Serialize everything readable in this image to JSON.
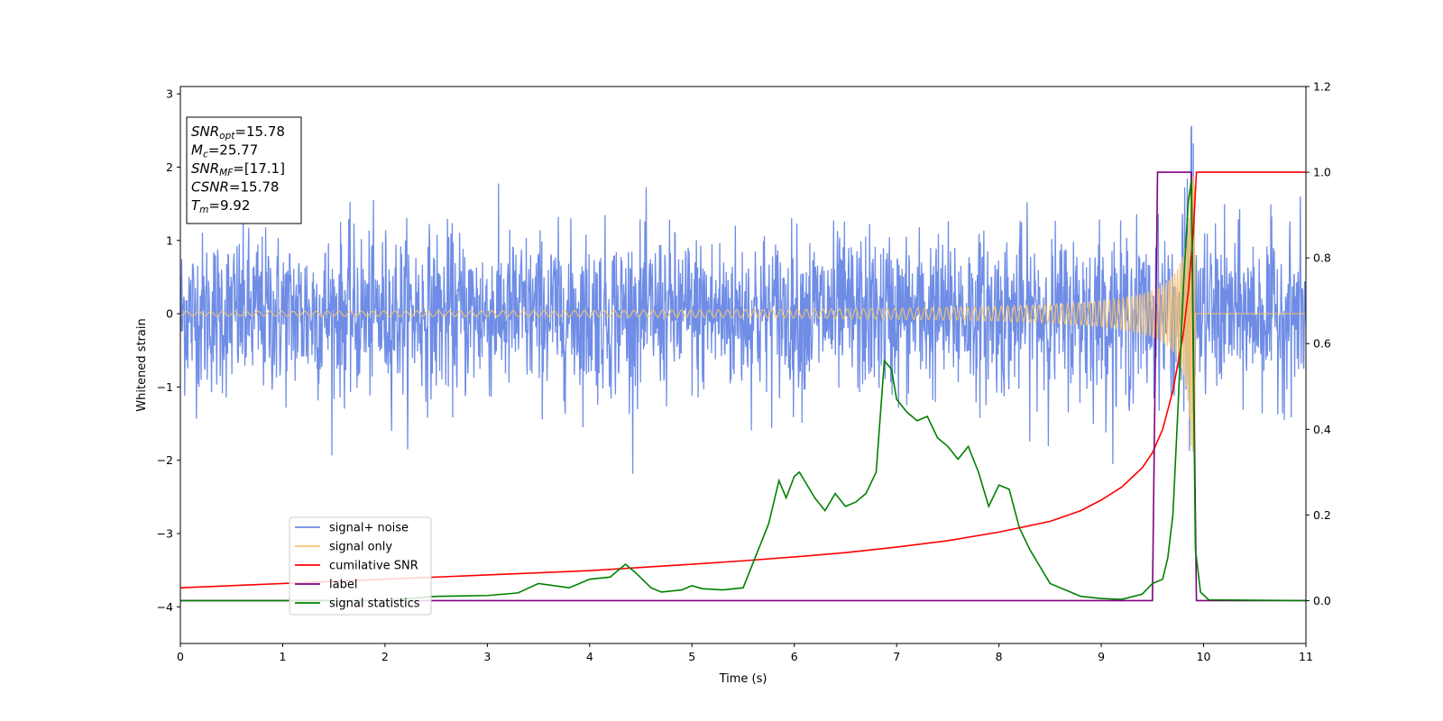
{
  "chart_data": {
    "type": "line",
    "xlabel": "Time (s)",
    "ylabel": "Whitened strain",
    "xlim": [
      0,
      11
    ],
    "ylim_left": [
      -4.5,
      3.1
    ],
    "ylim_right": [
      -0.1,
      1.2
    ],
    "x_ticks": [
      "0",
      "1",
      "2",
      "3",
      "4",
      "5",
      "6",
      "7",
      "8",
      "9",
      "10",
      "11"
    ],
    "y_ticks_left": [
      "3",
      "2",
      "1",
      "0",
      "−1",
      "−2",
      "−3",
      "−4"
    ],
    "y_ticks_right": [
      "1.2",
      "1.0",
      "0.8",
      "0.6",
      "0.4",
      "0.2",
      "0.0"
    ],
    "grid": false,
    "legend_position": "lower-left",
    "series": [
      {
        "name": "signal+ noise",
        "axis": "left",
        "color": "#6f8de6",
        "kind": "noise",
        "noise_std": 0.55,
        "peak_x": 9.88,
        "peak_y": 2.55,
        "end_x": 11
      },
      {
        "name": "signal only",
        "axis": "left",
        "color": "#f5c36f",
        "kind": "chirp",
        "merger_time": 9.92,
        "max_amplitude": 1.9
      },
      {
        "name": "cumilative SNR",
        "axis": "right",
        "color": "#ff0000",
        "x": [
          0,
          1,
          2,
          3,
          4,
          5,
          5.5,
          6,
          6.5,
          7,
          7.5,
          8,
          8.5,
          8.8,
          9,
          9.2,
          9.4,
          9.5,
          9.6,
          9.7,
          9.8,
          9.85,
          9.9,
          9.93,
          11
        ],
        "y": [
          0.03,
          0.04,
          0.05,
          0.06,
          0.07,
          0.085,
          0.093,
          0.102,
          0.112,
          0.125,
          0.14,
          0.16,
          0.185,
          0.21,
          0.235,
          0.265,
          0.31,
          0.345,
          0.4,
          0.49,
          0.62,
          0.72,
          0.86,
          1.0,
          1.0
        ]
      },
      {
        "name": "label",
        "axis": "right",
        "color": "#800080",
        "x": [
          0,
          9.5,
          9.55,
          9.88,
          9.93,
          11
        ],
        "y": [
          0,
          0,
          1,
          1,
          0,
          0
        ]
      },
      {
        "name": "signal statistics",
        "axis": "right",
        "color": "#008000",
        "x": [
          0,
          1,
          2,
          2.5,
          3,
          3.3,
          3.5,
          3.8,
          4,
          4.2,
          4.35,
          4.45,
          4.6,
          4.7,
          4.9,
          5,
          5.1,
          5.3,
          5.5,
          5.65,
          5.75,
          5.85,
          5.92,
          6,
          6.05,
          6.1,
          6.2,
          6.3,
          6.4,
          6.5,
          6.6,
          6.7,
          6.8,
          6.88,
          6.95,
          7.0,
          7.1,
          7.2,
          7.3,
          7.4,
          7.5,
          7.6,
          7.7,
          7.8,
          7.9,
          8.0,
          8.1,
          8.2,
          8.3,
          8.5,
          8.8,
          9.0,
          9.2,
          9.4,
          9.5,
          9.6,
          9.65,
          9.7,
          9.75,
          9.8,
          9.85,
          9.88,
          9.92,
          9.97,
          10.05,
          11
        ],
        "y": [
          0.0,
          0.0,
          0.0,
          0.01,
          0.012,
          0.018,
          0.04,
          0.03,
          0.05,
          0.055,
          0.085,
          0.065,
          0.03,
          0.02,
          0.025,
          0.035,
          0.028,
          0.025,
          0.03,
          0.12,
          0.18,
          0.28,
          0.24,
          0.29,
          0.3,
          0.28,
          0.24,
          0.21,
          0.25,
          0.22,
          0.23,
          0.25,
          0.3,
          0.56,
          0.54,
          0.47,
          0.44,
          0.42,
          0.43,
          0.38,
          0.36,
          0.33,
          0.36,
          0.3,
          0.22,
          0.27,
          0.26,
          0.17,
          0.12,
          0.04,
          0.01,
          0.005,
          0.003,
          0.015,
          0.04,
          0.05,
          0.1,
          0.2,
          0.45,
          0.72,
          0.93,
          0.98,
          0.12,
          0.02,
          0.002,
          0.0
        ]
      }
    ],
    "info_box": [
      {
        "base": "SNR",
        "sub": "opt",
        "value": "=15.78"
      },
      {
        "base": "M",
        "sub": "c",
        "value": "=25.77"
      },
      {
        "base": "SNR",
        "sub": "MF",
        "value": "=[17.1]"
      },
      {
        "base": "CSNR",
        "sub": "",
        "value": "=15.78"
      },
      {
        "base": "T",
        "sub": "m",
        "value": "=9.92"
      }
    ]
  }
}
